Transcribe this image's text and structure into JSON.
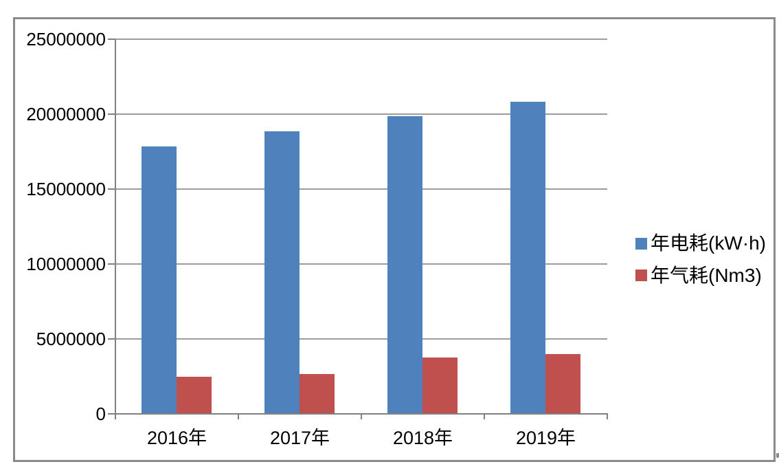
{
  "chart_data": {
    "type": "bar",
    "title": "",
    "categories": [
      "2016年",
      "2017年",
      "2018年",
      "2019年"
    ],
    "series": [
      {
        "name": "年电耗(kW·h)",
        "color": "#4F81BD",
        "values": [
          17850000,
          18820000,
          19850000,
          20820000
        ]
      },
      {
        "name": "年气耗(Nm3)",
        "color": "#C0504D",
        "values": [
          2480000,
          2650000,
          3750000,
          4000000
        ]
      }
    ],
    "xlabel": "",
    "ylabel": "",
    "ylim": [
      0,
      25000000
    ],
    "ytick_step": 5000000,
    "ytick_labels": [
      "0",
      "5000000",
      "10000000",
      "15000000",
      "20000000",
      "25000000"
    ],
    "grid": true,
    "legend_position": "right"
  },
  "colors": {
    "series_blue": "#4F81BD",
    "series_red": "#C0504D",
    "gridline": "#9C9C9C",
    "axis": "#808080",
    "chart_border": "#8A8A8A",
    "background": "#FFFFFF",
    "text": "#000000"
  }
}
